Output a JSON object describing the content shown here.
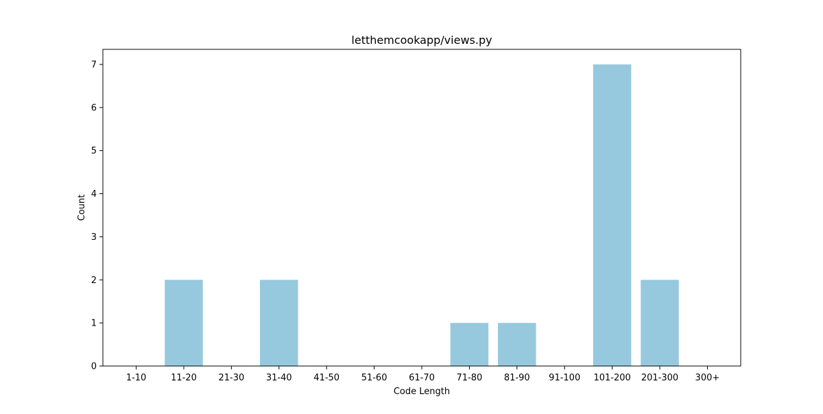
{
  "chart_data": {
    "type": "bar",
    "title": "letthemcookapp/views.py",
    "xlabel": "Code Length",
    "ylabel": "Count",
    "categories": [
      "1-10",
      "11-20",
      "21-30",
      "31-40",
      "41-50",
      "51-60",
      "61-70",
      "71-80",
      "81-90",
      "91-100",
      "101-200",
      "201-300",
      "300+"
    ],
    "values": [
      0,
      2,
      0,
      2,
      0,
      0,
      0,
      1,
      1,
      0,
      7,
      2,
      0
    ],
    "ylim": [
      0,
      7.35
    ],
    "yticks": [
      "0",
      "1",
      "2",
      "3",
      "4",
      "5",
      "6",
      "7"
    ],
    "bar_color": "#96c9de",
    "grid": false,
    "legend": "none"
  }
}
